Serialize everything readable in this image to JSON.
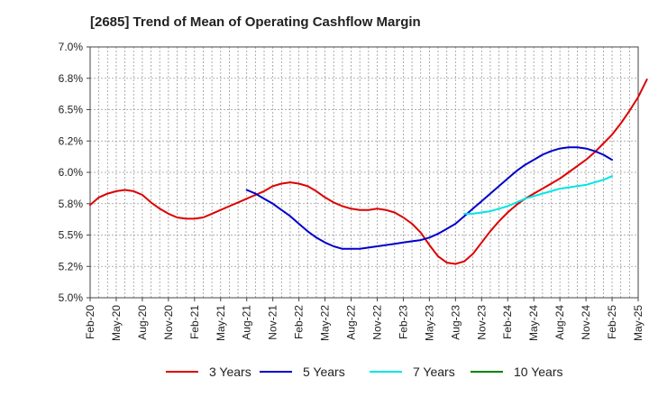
{
  "chart_data": {
    "type": "line",
    "title": "[2685]  Trend of Mean of Operating Cashflow Margin",
    "xlabel": "",
    "ylabel": "",
    "ylim": [
      5.0,
      7.0
    ],
    "y_ticks": [
      "5.0%",
      "5.2%",
      "5.5%",
      "5.8%",
      "6.0%",
      "6.2%",
      "6.5%",
      "6.8%",
      "7.0%"
    ],
    "x_ticks": [
      "Feb-20",
      "May-20",
      "Aug-20",
      "Nov-20",
      "Feb-21",
      "May-21",
      "Aug-21",
      "Nov-21",
      "Feb-22",
      "May-22",
      "Aug-22",
      "Nov-22",
      "Feb-23",
      "May-23",
      "Aug-23",
      "Nov-23",
      "Feb-24",
      "May-24",
      "Aug-24",
      "Nov-24",
      "Feb-25",
      "May-25"
    ],
    "grid": true,
    "legend_position": "bottom",
    "series": [
      {
        "name": "3 Years",
        "color": "#dd0000",
        "points": [
          [
            0,
            5.74
          ],
          [
            1,
            5.8
          ],
          [
            2,
            5.83
          ],
          [
            3,
            5.85
          ],
          [
            4,
            5.86
          ],
          [
            5,
            5.85
          ],
          [
            6,
            5.82
          ],
          [
            7,
            5.76
          ],
          [
            8,
            5.71
          ],
          [
            9,
            5.67
          ],
          [
            10,
            5.64
          ],
          [
            11,
            5.63
          ],
          [
            12,
            5.63
          ],
          [
            13,
            5.64
          ],
          [
            14,
            5.67
          ],
          [
            15,
            5.7
          ],
          [
            16,
            5.73
          ],
          [
            17,
            5.76
          ],
          [
            18,
            5.79
          ],
          [
            19,
            5.82
          ],
          [
            20,
            5.85
          ],
          [
            21,
            5.89
          ],
          [
            22,
            5.91
          ],
          [
            23,
            5.92
          ],
          [
            24,
            5.91
          ],
          [
            25,
            5.89
          ],
          [
            26,
            5.85
          ],
          [
            27,
            5.8
          ],
          [
            28,
            5.76
          ],
          [
            29,
            5.73
          ],
          [
            30,
            5.71
          ],
          [
            31,
            5.7
          ],
          [
            32,
            5.7
          ],
          [
            33,
            5.71
          ],
          [
            34,
            5.7
          ],
          [
            35,
            5.68
          ],
          [
            36,
            5.64
          ],
          [
            37,
            5.59
          ],
          [
            38,
            5.52
          ],
          [
            39,
            5.42
          ],
          [
            40,
            5.33
          ],
          [
            41,
            5.28
          ],
          [
            42,
            5.27
          ],
          [
            43,
            5.29
          ],
          [
            44,
            5.35
          ],
          [
            45,
            5.44
          ],
          [
            46,
            5.53
          ],
          [
            47,
            5.61
          ],
          [
            48,
            5.68
          ],
          [
            49,
            5.74
          ],
          [
            50,
            5.79
          ],
          [
            51,
            5.83
          ],
          [
            52,
            5.87
          ],
          [
            53,
            5.91
          ],
          [
            54,
            5.95
          ],
          [
            55,
            6.0
          ],
          [
            56,
            6.05
          ],
          [
            57,
            6.1
          ],
          [
            58,
            6.16
          ],
          [
            59,
            6.23
          ],
          [
            60,
            6.3
          ],
          [
            61,
            6.39
          ],
          [
            62,
            6.49
          ],
          [
            63,
            6.6
          ],
          [
            64,
            6.74
          ]
        ]
      },
      {
        "name": "5 Years",
        "color": "#0000cc",
        "points": [
          [
            18,
            5.86
          ],
          [
            19,
            5.83
          ],
          [
            20,
            5.79
          ],
          [
            21,
            5.75
          ],
          [
            22,
            5.7
          ],
          [
            23,
            5.65
          ],
          [
            24,
            5.59
          ],
          [
            25,
            5.53
          ],
          [
            26,
            5.48
          ],
          [
            27,
            5.44
          ],
          [
            28,
            5.41
          ],
          [
            29,
            5.39
          ],
          [
            30,
            5.39
          ],
          [
            31,
            5.39
          ],
          [
            32,
            5.4
          ],
          [
            33,
            5.41
          ],
          [
            34,
            5.42
          ],
          [
            35,
            5.43
          ],
          [
            36,
            5.44
          ],
          [
            37,
            5.45
          ],
          [
            38,
            5.46
          ],
          [
            39,
            5.48
          ],
          [
            40,
            5.51
          ],
          [
            41,
            5.55
          ],
          [
            42,
            5.59
          ],
          [
            43,
            5.65
          ],
          [
            44,
            5.71
          ],
          [
            45,
            5.77
          ],
          [
            46,
            5.83
          ],
          [
            47,
            5.89
          ],
          [
            48,
            5.95
          ],
          [
            49,
            6.01
          ],
          [
            50,
            6.06
          ],
          [
            51,
            6.1
          ],
          [
            52,
            6.14
          ],
          [
            53,
            6.17
          ],
          [
            54,
            6.19
          ],
          [
            55,
            6.2
          ],
          [
            56,
            6.2
          ],
          [
            57,
            6.19
          ],
          [
            58,
            6.17
          ],
          [
            59,
            6.14
          ],
          [
            60,
            6.1
          ]
        ]
      },
      {
        "name": "7 Years",
        "color": "#00e5e5",
        "points": [
          [
            43,
            5.67
          ],
          [
            44,
            5.67
          ],
          [
            45,
            5.68
          ],
          [
            46,
            5.69
          ],
          [
            47,
            5.71
          ],
          [
            48,
            5.73
          ],
          [
            49,
            5.76
          ],
          [
            50,
            5.79
          ],
          [
            51,
            5.81
          ],
          [
            52,
            5.83
          ],
          [
            53,
            5.85
          ],
          [
            54,
            5.87
          ],
          [
            55,
            5.88
          ],
          [
            56,
            5.89
          ],
          [
            57,
            5.9
          ],
          [
            58,
            5.92
          ],
          [
            59,
            5.94
          ],
          [
            60,
            5.97
          ]
        ]
      },
      {
        "name": "10 Years",
        "color": "#008000",
        "points": []
      }
    ]
  }
}
